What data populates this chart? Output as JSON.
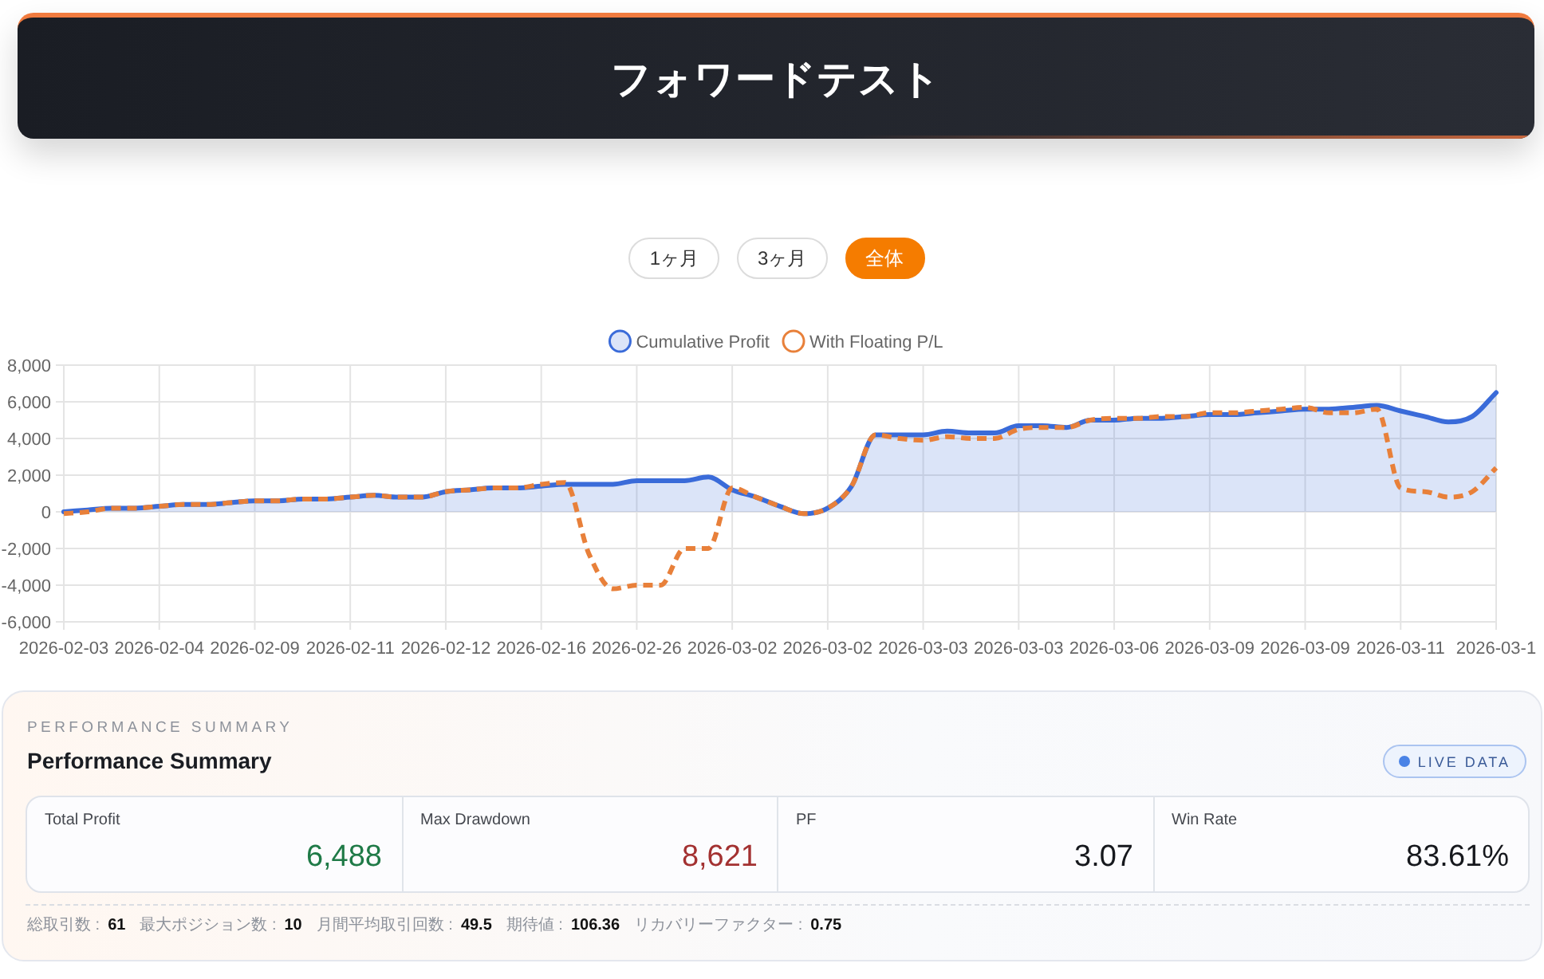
{
  "chart_data": [
    {
      "type": "line",
      "title": "フォワードテスト",
      "annotations": [
        "1ヶ月",
        "3ヶ月",
        "全体"
      ],
      "categories": [
        "2026-02-03",
        null,
        null,
        null,
        "2026-02-04",
        null,
        null,
        null,
        "2026-02-09",
        null,
        null,
        null,
        "2026-02-11",
        null,
        null,
        null,
        "2026-02-12",
        null,
        null,
        null,
        "2026-02-16",
        null,
        null,
        null,
        "2026-02-26",
        null,
        null,
        null,
        "2026-03-02",
        null,
        null,
        null,
        "2026-03-02",
        null,
        null,
        null,
        "2026-03-03",
        null,
        null,
        null,
        "2026-03-03",
        null,
        null,
        null,
        "2026-03-06",
        null,
        null,
        null,
        "2026-03-09",
        null,
        null,
        null,
        "2026-03-09",
        null,
        null,
        null,
        "2026-03-11",
        null,
        null,
        null,
        "2026-03-1"
      ],
      "series": [
        {
          "name": "Cumulative Profit",
          "type": "area",
          "color": "#3a6bd9",
          "values": [
            0,
            100,
            200,
            200,
            300,
            400,
            400,
            500,
            600,
            600,
            700,
            700,
            800,
            900,
            800,
            800,
            1100,
            1200,
            1300,
            1300,
            1400,
            1500,
            1500,
            1500,
            1700,
            1700,
            1700,
            1900,
            1200,
            800,
            300,
            -100,
            200,
            1400,
            4200,
            4200,
            4200,
            4400,
            4300,
            4300,
            4700,
            4700,
            4600,
            5000,
            5000,
            5100,
            5100,
            5200,
            5300,
            5300,
            5400,
            5500,
            5600,
            5600,
            5700,
            5800,
            5500,
            5200,
            4900,
            5200,
            6500
          ]
        },
        {
          "name": "With Floating P/L",
          "type": "line",
          "color": "#e8803a",
          "line_style": "dashed",
          "values": [
            -100,
            0,
            200,
            200,
            300,
            400,
            400,
            500,
            600,
            600,
            700,
            700,
            800,
            900,
            800,
            800,
            1100,
            1200,
            1300,
            1300,
            1500,
            1600,
            -2300,
            -4200,
            -4000,
            -4000,
            -2000,
            -2000,
            1300,
            800,
            300,
            -100,
            200,
            1400,
            4200,
            4000,
            3900,
            4100,
            4000,
            4000,
            4500,
            4600,
            4600,
            5000,
            5100,
            5100,
            5200,
            5200,
            5400,
            5400,
            5500,
            5600,
            5700,
            5400,
            5400,
            5600,
            1300,
            1100,
            800,
            1100,
            2400
          ]
        }
      ],
      "ylim": [
        -6000,
        8000
      ],
      "yticks": [
        {
          "value": -6000,
          "label": "-6,000"
        },
        {
          "value": -4000,
          "label": "-4,000"
        },
        {
          "value": -2000,
          "label": "-2,000"
        },
        0,
        {
          "value": 2000,
          "label": "2,000"
        },
        {
          "value": 4000,
          "label": "4,000"
        },
        {
          "value": 6000,
          "label": "6,000"
        },
        {
          "value": 8000,
          "label": "8,000"
        }
      ],
      "grid": true,
      "legend": "top"
    },
    {
      "type": "other",
      "title": "PERFORMANCE SUMMARY",
      "subtitle": "Performance Summary",
      "annotations": [
        "LIVE DATA",
        "Total Profit",
        "6,488",
        "Max Drawdown",
        "8,621",
        "PF",
        "3.07",
        "Win Rate",
        "83.61%",
        "総取引数 :",
        "61",
        "最大ポジション数 :",
        "10",
        "月間平均取引回数 :",
        "49.5",
        "期待値 :",
        "106.36",
        "リカバリーファクター :",
        "0.75"
      ]
    }
  ]
}
